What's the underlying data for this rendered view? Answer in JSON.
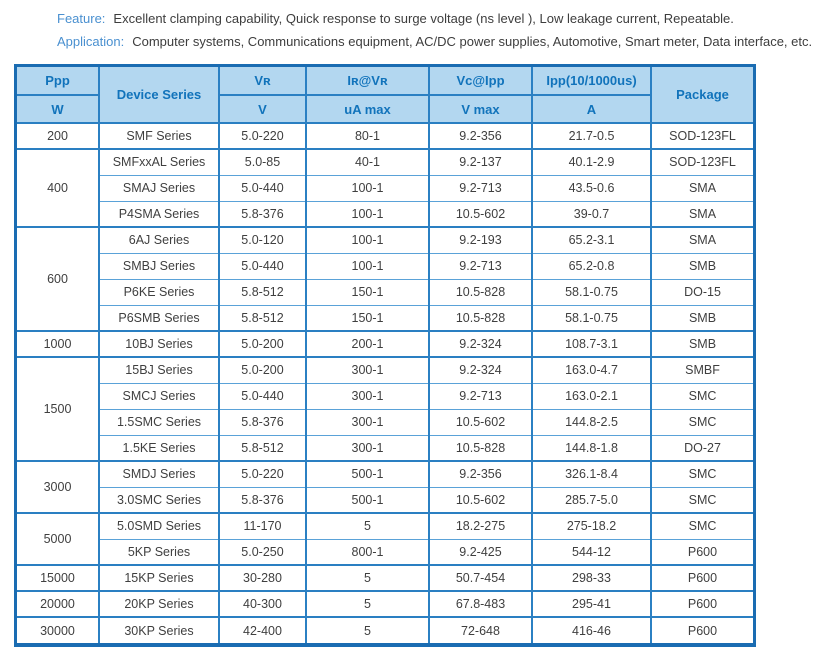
{
  "intro": {
    "feature_label": "Feature:",
    "feature_text": "Excellent clamping capability, Quick response to surge voltage (ns level ), Low leakage current,  Repeatable.",
    "application_label": "Application:",
    "application_text": "Computer systems,  Communications equipment, AC/DC power supplies, Automotive, Smart meter, Data interface, etc."
  },
  "colors": {
    "outer_border": "#1a6cb2",
    "grid_line": "#2b80c3",
    "light_grid_line": "#5aa2d8",
    "header_bg": "#b3d7f0",
    "header_text": "#1173bb",
    "intro_label_blue": "#4a90d0",
    "body_text": "#3f3f3f"
  },
  "table": {
    "header": {
      "ppp": "Ppp",
      "ppp_unit": "W",
      "device_series": "Device Series",
      "vr": "Vʀ",
      "vr_unit": "V",
      "ir_vr": "Iʀ@Vʀ",
      "ir_vr_unit": "uA max",
      "vc_ipp": "Vc@Ipp",
      "vc_ipp_unit": "V max",
      "ipp": "Ipp(10/1000us)",
      "ipp_unit": "A",
      "package": "Package"
    },
    "groups": [
      {
        "ppp": "200",
        "rows": [
          [
            "SMF Series",
            "5.0-220",
            "80-1",
            "9.2-356",
            "21.7-0.5",
            "SOD-123FL"
          ]
        ]
      },
      {
        "ppp": "400",
        "rows": [
          [
            "SMFxxAL Series",
            "5.0-85",
            "40-1",
            "9.2-137",
            "40.1-2.9",
            "SOD-123FL"
          ],
          [
            "SMAJ Series",
            "5.0-440",
            "100-1",
            "9.2-713",
            "43.5-0.6",
            "SMA"
          ],
          [
            "P4SMA Series",
            "5.8-376",
            "100-1",
            "10.5-602",
            "39-0.7",
            "SMA"
          ]
        ]
      },
      {
        "ppp": "600",
        "rows": [
          [
            "6AJ Series",
            "5.0-120",
            "100-1",
            "9.2-193",
            "65.2-3.1",
            "SMA"
          ],
          [
            "SMBJ Series",
            "5.0-440",
            "100-1",
            "9.2-713",
            "65.2-0.8",
            "SMB"
          ],
          [
            "P6KE Series",
            "5.8-512",
            "150-1",
            "10.5-828",
            "58.1-0.75",
            "DO-15"
          ],
          [
            "P6SMB Series",
            "5.8-512",
            "150-1",
            "10.5-828",
            "58.1-0.75",
            "SMB"
          ]
        ]
      },
      {
        "ppp": "1000",
        "rows": [
          [
            "10BJ Series",
            "5.0-200",
            "200-1",
            "9.2-324",
            "108.7-3.1",
            "SMB"
          ]
        ]
      },
      {
        "ppp": "1500",
        "rows": [
          [
            "15BJ Series",
            "5.0-200",
            "300-1",
            "9.2-324",
            "163.0-4.7",
            "SMBF"
          ],
          [
            "SMCJ Series",
            "5.0-440",
            "300-1",
            "9.2-713",
            "163.0-2.1",
            "SMC"
          ],
          [
            "1.5SMC Series",
            "5.8-376",
            "300-1",
            "10.5-602",
            "144.8-2.5",
            "SMC"
          ],
          [
            "1.5KE Series",
            "5.8-512",
            "300-1",
            "10.5-828",
            "144.8-1.8",
            "DO-27"
          ]
        ]
      },
      {
        "ppp": "3000",
        "rows": [
          [
            "SMDJ Series",
            "5.0-220",
            "500-1",
            "9.2-356",
            "326.1-8.4",
            "SMC"
          ],
          [
            "3.0SMC Series",
            "5.8-376",
            "500-1",
            "10.5-602",
            "285.7-5.0",
            "SMC"
          ]
        ]
      },
      {
        "ppp": "5000",
        "rows": [
          [
            "5.0SMD Series",
            "11-170",
            "5",
            "18.2-275",
            "275-18.2",
            "SMC"
          ],
          [
            "5KP Series",
            "5.0-250",
            "800-1",
            "9.2-425",
            "544-12",
            "P600"
          ]
        ]
      },
      {
        "ppp": "15000",
        "rows": [
          [
            "15KP Series",
            "30-280",
            "5",
            "50.7-454",
            "298-33",
            "P600"
          ]
        ]
      },
      {
        "ppp": "20000",
        "rows": [
          [
            "20KP Series",
            "40-300",
            "5",
            "67.8-483",
            "295-41",
            "P600"
          ]
        ]
      },
      {
        "ppp": "30000",
        "rows": [
          [
            "30KP Series",
            "42-400",
            "5",
            "72-648",
            "416-46",
            "P600"
          ]
        ]
      }
    ]
  }
}
